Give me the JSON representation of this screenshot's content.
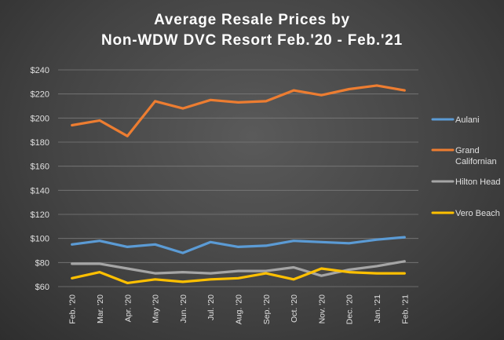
{
  "chart_data": {
    "type": "line",
    "title": [
      "Average Resale Prices by",
      "Non-WDW  DVC Resort Feb.'20 - Feb.'21"
    ],
    "xlabel": "",
    "ylabel": "",
    "categories": [
      "Feb. '20",
      "Mar. '20",
      "Apr. '20",
      "May '20",
      "Jun. '20",
      "Jul. '20",
      "Aug. '20",
      "Sep. '20",
      "Oct. '20",
      "Nov. '20",
      "Dec. '20",
      "Jan. '21",
      "Feb. '21"
    ],
    "ylim": [
      60,
      240
    ],
    "yticks": [
      60,
      80,
      100,
      120,
      140,
      160,
      180,
      200,
      220,
      240
    ],
    "ytick_labels": [
      "$60",
      "$80",
      "$100",
      "$120",
      "$140",
      "$160",
      "$180",
      "$200",
      "$220",
      "$240"
    ],
    "grid": true,
    "legend_position": "right",
    "series": [
      {
        "name": "Aulani",
        "legend_lines": [
          "Aulani"
        ],
        "color": "#5b9bd5",
        "values": [
          95,
          98,
          93,
          95,
          88,
          97,
          93,
          94,
          98,
          97,
          96,
          99,
          101
        ]
      },
      {
        "name": "Grand Californian",
        "legend_lines": [
          "Grand",
          "Californian"
        ],
        "color": "#ed7d31",
        "values": [
          194,
          198,
          185,
          214,
          208,
          215,
          213,
          214,
          223,
          219,
          224,
          227,
          223
        ]
      },
      {
        "name": "Hilton Head",
        "legend_lines": [
          "Hilton Head"
        ],
        "color": "#a5a5a5",
        "values": [
          79,
          79,
          75,
          71,
          72,
          71,
          73,
          73,
          76,
          69,
          74,
          77,
          81
        ]
      },
      {
        "name": "Vero Beach",
        "legend_lines": [
          "Vero Beach"
        ],
        "color": "#ffc000",
        "values": [
          67,
          72,
          63,
          66,
          64,
          66,
          67,
          71,
          66,
          75,
          72,
          71,
          71
        ]
      }
    ]
  }
}
